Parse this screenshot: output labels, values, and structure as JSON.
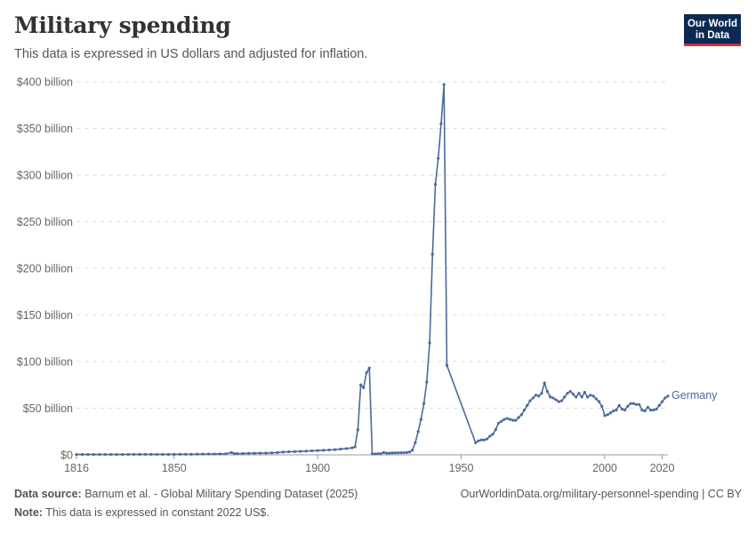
{
  "header": {
    "title": "Military spending",
    "subtitle": "This data is expressed in US dollars and adjusted for inflation."
  },
  "logo": {
    "line1": "Our World",
    "line2": "in Data"
  },
  "footer": {
    "source_label": "Data source:",
    "source_text": "Barnum et al. - Global Military Spending Dataset (2025)",
    "url_text": "OurWorldinData.org/military-personnel-spending | CC BY",
    "note_label": "Note:",
    "note_text": "This data is expressed in constant 2022 US$."
  },
  "colors": {
    "series": "#4c6a9c",
    "grid": "#dddddd",
    "axis": "#999999"
  },
  "chart_data": {
    "type": "line",
    "title": "Military spending",
    "subtitle": "This data is expressed in US dollars and adjusted for inflation.",
    "xlabel": "",
    "ylabel": "",
    "xlim": [
      1816,
      2021
    ],
    "ylim": [
      0,
      400
    ],
    "y_unit": "billion US$ (constant 2022)",
    "x_ticks": [
      1816,
      1850,
      1900,
      1950,
      2000,
      2020
    ],
    "y_ticks": [
      0,
      50,
      100,
      150,
      200,
      250,
      300,
      350,
      400
    ],
    "y_tick_labels": [
      "$0",
      "$50 billion",
      "$100 billion",
      "$150 billion",
      "$200 billion",
      "$250 billion",
      "$300 billion",
      "$350 billion",
      "$400 billion"
    ],
    "grid": true,
    "series": [
      {
        "name": "Germany",
        "points": [
          [
            1816,
            0.4
          ],
          [
            1818,
            0.4
          ],
          [
            1820,
            0.4
          ],
          [
            1822,
            0.4
          ],
          [
            1824,
            0.4
          ],
          [
            1826,
            0.4
          ],
          [
            1828,
            0.4
          ],
          [
            1830,
            0.4
          ],
          [
            1832,
            0.4
          ],
          [
            1834,
            0.5
          ],
          [
            1836,
            0.5
          ],
          [
            1838,
            0.5
          ],
          [
            1840,
            0.5
          ],
          [
            1842,
            0.5
          ],
          [
            1844,
            0.5
          ],
          [
            1846,
            0.5
          ],
          [
            1848,
            0.5
          ],
          [
            1850,
            0.5
          ],
          [
            1852,
            0.6
          ],
          [
            1854,
            0.6
          ],
          [
            1856,
            0.6
          ],
          [
            1858,
            0.7
          ],
          [
            1860,
            0.8
          ],
          [
            1862,
            0.8
          ],
          [
            1864,
            0.9
          ],
          [
            1866,
            1.0
          ],
          [
            1868,
            1.1
          ],
          [
            1870,
            2.5
          ],
          [
            1871,
            1.2
          ],
          [
            1872,
            1.3
          ],
          [
            1874,
            1.4
          ],
          [
            1876,
            1.6
          ],
          [
            1878,
            1.7
          ],
          [
            1880,
            1.8
          ],
          [
            1882,
            1.9
          ],
          [
            1884,
            2.1
          ],
          [
            1886,
            2.4
          ],
          [
            1888,
            3.0
          ],
          [
            1890,
            3.3
          ],
          [
            1892,
            3.5
          ],
          [
            1894,
            3.7
          ],
          [
            1896,
            4.0
          ],
          [
            1898,
            4.3
          ],
          [
            1900,
            4.6
          ],
          [
            1902,
            4.9
          ],
          [
            1904,
            5.2
          ],
          [
            1906,
            5.6
          ],
          [
            1908,
            6.2
          ],
          [
            1910,
            6.7
          ],
          [
            1912,
            7.5
          ],
          [
            1913,
            8.5
          ],
          [
            1914,
            27
          ],
          [
            1915,
            75
          ],
          [
            1916,
            72
          ],
          [
            1917,
            88
          ],
          [
            1918,
            93
          ],
          [
            1919,
            1.0
          ],
          [
            1920,
            1.0
          ],
          [
            1921,
            1.2
          ],
          [
            1922,
            1.2
          ],
          [
            1923,
            2.5
          ],
          [
            1924,
            1.8
          ],
          [
            1925,
            1.8
          ],
          [
            1926,
            2.0
          ],
          [
            1927,
            2.2
          ],
          [
            1928,
            2.2
          ],
          [
            1929,
            2.3
          ],
          [
            1930,
            2.3
          ],
          [
            1931,
            2.5
          ],
          [
            1932,
            3.0
          ],
          [
            1933,
            5
          ],
          [
            1934,
            13
          ],
          [
            1935,
            25
          ],
          [
            1936,
            38
          ],
          [
            1937,
            55
          ],
          [
            1938,
            78
          ],
          [
            1939,
            120
          ],
          [
            1940,
            215
          ],
          [
            1941,
            290
          ],
          [
            1942,
            318
          ],
          [
            1943,
            355
          ],
          [
            1944,
            397
          ],
          [
            1945,
            96
          ],
          [
            1955,
            13
          ],
          [
            1956,
            15
          ],
          [
            1957,
            16
          ],
          [
            1958,
            16
          ],
          [
            1959,
            17
          ],
          [
            1960,
            20
          ],
          [
            1961,
            22
          ],
          [
            1962,
            27
          ],
          [
            1963,
            34
          ],
          [
            1964,
            36
          ],
          [
            1965,
            38
          ],
          [
            1966,
            39
          ],
          [
            1967,
            38
          ],
          [
            1968,
            37
          ],
          [
            1969,
            37
          ],
          [
            1970,
            40
          ],
          [
            1971,
            43
          ],
          [
            1972,
            48
          ],
          [
            1973,
            53
          ],
          [
            1974,
            58
          ],
          [
            1975,
            61
          ],
          [
            1976,
            64
          ],
          [
            1977,
            63
          ],
          [
            1978,
            66
          ],
          [
            1979,
            77
          ],
          [
            1980,
            68
          ],
          [
            1981,
            62
          ],
          [
            1982,
            61
          ],
          [
            1983,
            59
          ],
          [
            1984,
            57
          ],
          [
            1985,
            58
          ],
          [
            1986,
            62
          ],
          [
            1987,
            66
          ],
          [
            1988,
            68
          ],
          [
            1989,
            65
          ],
          [
            1990,
            62
          ],
          [
            1991,
            66
          ],
          [
            1992,
            62
          ],
          [
            1993,
            67
          ],
          [
            1994,
            62
          ],
          [
            1995,
            64
          ],
          [
            1996,
            63
          ],
          [
            1997,
            60
          ],
          [
            1998,
            57
          ],
          [
            1999,
            52
          ],
          [
            2000,
            42
          ],
          [
            2001,
            43
          ],
          [
            2002,
            45
          ],
          [
            2003,
            47
          ],
          [
            2004,
            48
          ],
          [
            2005,
            53
          ],
          [
            2006,
            49
          ],
          [
            2007,
            48
          ],
          [
            2008,
            52
          ],
          [
            2009,
            55
          ],
          [
            2010,
            55
          ],
          [
            2011,
            54
          ],
          [
            2012,
            54
          ],
          [
            2013,
            48
          ],
          [
            2014,
            47
          ],
          [
            2015,
            51
          ],
          [
            2016,
            48
          ],
          [
            2017,
            48
          ],
          [
            2018,
            49
          ],
          [
            2019,
            53
          ],
          [
            2020,
            57
          ],
          [
            2021,
            61
          ],
          [
            2022,
            63
          ]
        ]
      }
    ]
  }
}
